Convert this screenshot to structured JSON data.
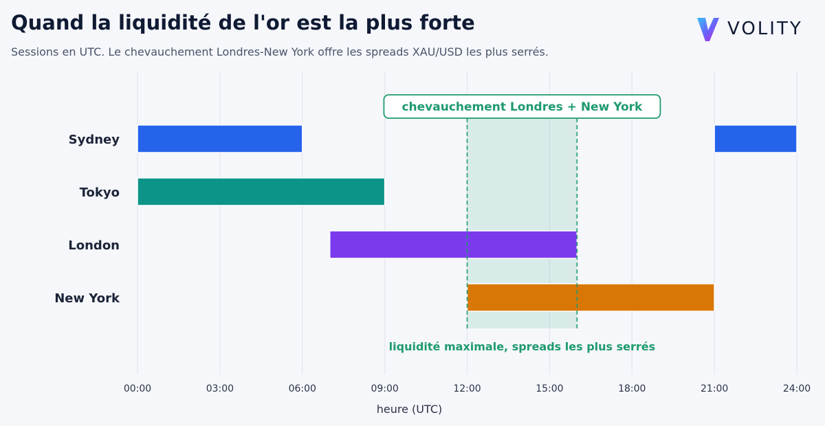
{
  "header": {
    "title": "Quand la liquidité de l'or est la plus forte",
    "subtitle": "Sessions en UTC. Le chevauchement Londres-New York offre les spreads XAU/USD les plus serrés."
  },
  "brand": {
    "name": "VOLITY",
    "icon": "volity-v-logo-icon"
  },
  "chart_data": {
    "type": "bar",
    "orientation": "horizontal-range",
    "categories": [
      "Sydney",
      "Tokyo",
      "London",
      "New York"
    ],
    "series": [
      {
        "category": "Sydney",
        "segments": [
          [
            0,
            6
          ],
          [
            21,
            24
          ]
        ],
        "color": "#2563eb"
      },
      {
        "category": "Tokyo",
        "segments": [
          [
            0,
            9
          ]
        ],
        "color": "#0d9488"
      },
      {
        "category": "London",
        "segments": [
          [
            7,
            16
          ]
        ],
        "color": "#7c3aed"
      },
      {
        "category": "New York",
        "segments": [
          [
            12,
            21
          ]
        ],
        "color": "#d97706"
      }
    ],
    "xlabel": "heure (UTC)",
    "xlim": [
      0,
      24
    ],
    "xticks": [
      0,
      3,
      6,
      9,
      12,
      15,
      18,
      21,
      24
    ],
    "xtick_labels": [
      "00:00",
      "03:00",
      "06:00",
      "09:00",
      "12:00",
      "15:00",
      "18:00",
      "21:00",
      "24:00"
    ],
    "grid": "vertical",
    "highlight": {
      "from": 12,
      "to": 16,
      "label_top": "chevauchement Londres + New York",
      "label_bottom": "liquidité maximale, spreads les plus serrés",
      "color": "#1f9a6e"
    }
  }
}
